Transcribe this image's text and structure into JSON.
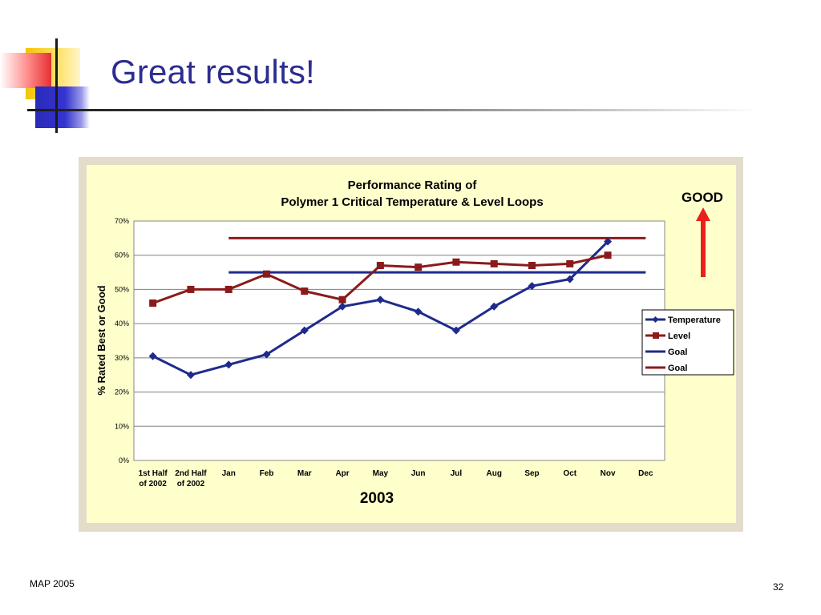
{
  "slide": {
    "title": "Great results!",
    "footer_left": "MAP 2005",
    "page_number": "32"
  },
  "colors": {
    "title": "#2b2d8f",
    "temperature": "#1f2a8c",
    "level": "#8b1a1a",
    "goal_blue": "#1f2a8c",
    "goal_red": "#8b1a1a",
    "arrow": "#e8221b",
    "chart_background": "#ffffcc",
    "plot_background": "#ffffff"
  },
  "chart_data": {
    "type": "line",
    "title": "Performance Rating of\nPolymer 1 Critical Temperature & Level Loops",
    "ylabel": "% Rated Best or Good",
    "xlabel": "2003",
    "ylim": [
      0,
      70
    ],
    "yticks": [
      "0%",
      "10%",
      "20%",
      "30%",
      "40%",
      "50%",
      "60%",
      "70%"
    ],
    "categories": [
      "1st Half\nof 2002",
      "2nd Half\nof 2002",
      "Jan",
      "Feb",
      "Mar",
      "Apr",
      "May",
      "Jun",
      "Jul",
      "Aug",
      "Sep",
      "Oct",
      "Nov",
      "Dec"
    ],
    "series": [
      {
        "name": "Temperature",
        "values": [
          30.5,
          25,
          28,
          31,
          38,
          45,
          47,
          43.5,
          38,
          45,
          51,
          53,
          64,
          null
        ]
      },
      {
        "name": "Level",
        "values": [
          46,
          50,
          50,
          54.5,
          49.5,
          47,
          57,
          56.5,
          58,
          57.5,
          57,
          57.5,
          60,
          null
        ]
      },
      {
        "name": "Goal",
        "values": [
          null,
          null,
          55,
          55,
          55,
          55,
          55,
          55,
          55,
          55,
          55,
          55,
          55,
          55
        ]
      },
      {
        "name": "Goal",
        "values": [
          null,
          null,
          65,
          65,
          65,
          65,
          65,
          65,
          65,
          65,
          65,
          65,
          65,
          65
        ]
      }
    ],
    "legend_position": "right",
    "grid": true,
    "annotation": "GOOD"
  }
}
